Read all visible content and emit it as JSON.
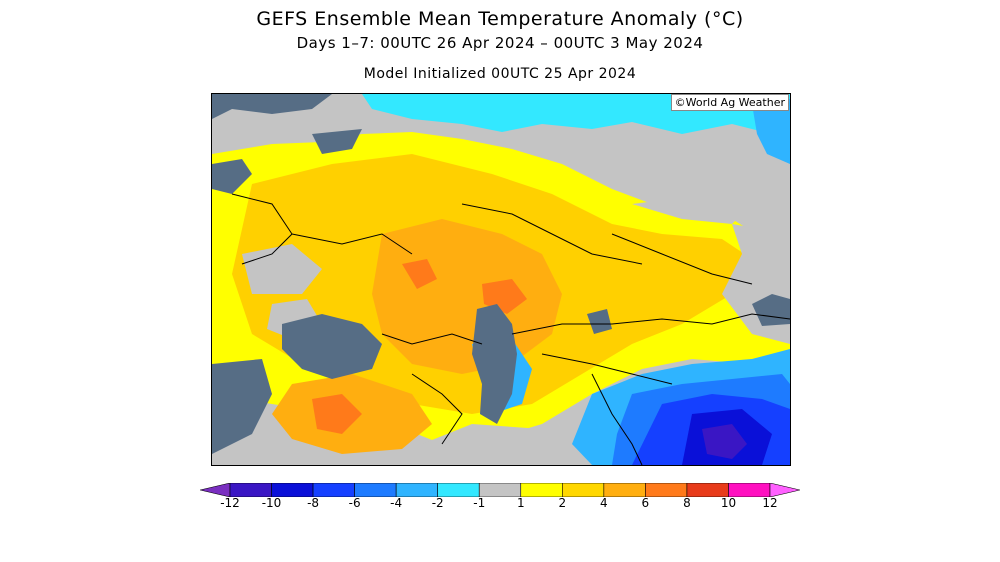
{
  "title": {
    "line1": "GEFS Ensemble Mean Temperature Anomaly (°C)",
    "line2": "Days 1–7: 00UTC 26 Apr 2024 – 00UTC 3 May 2024",
    "line3": "Model Initialized 00UTC 25 Apr 2024"
  },
  "credit": "©World Ag Weather",
  "legend": {
    "tick_labels": [
      "-12",
      "-10",
      "-8",
      "-6",
      "-4",
      "-2",
      "-1",
      "1",
      "2",
      "4",
      "6",
      "8",
      "10",
      "12"
    ],
    "colors": [
      "#7a2fc0",
      "#3a16c4",
      "#0a10d8",
      "#1540ff",
      "#1e7bff",
      "#2fb4ff",
      "#33e8ff",
      "#c4c4c4",
      "#ffff00",
      "#ffd700",
      "#ffae10",
      "#ff7a1a",
      "#e83b1a",
      "#ff10c0",
      "#ff60ff"
    ]
  },
  "map_colors": {
    "neutral": "#c4c4c4",
    "water": "#566d85",
    "anom_1_2": "#ffff00",
    "anom_2_4": "#ffd000",
    "anom_4_6": "#ffae10",
    "anom_6_8": "#ff7a1a",
    "anom_neg1": "#33e8ff",
    "anom_neg2": "#2fb4ff",
    "anom_neg4": "#1e7bff",
    "anom_neg6": "#1540ff",
    "anom_neg8": "#0a10d8",
    "anom_neg10": "#3a16c4"
  }
}
